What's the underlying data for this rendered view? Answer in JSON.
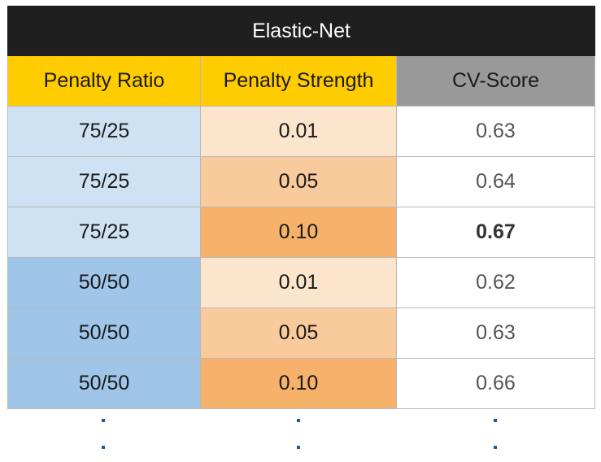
{
  "table": {
    "title": "Elastic-Net",
    "headers": [
      "Penalty Ratio",
      "Penalty Strength",
      "CV-Score"
    ],
    "rows": [
      {
        "ratio": "75/25",
        "strength": "0.01",
        "score": "0.63"
      },
      {
        "ratio": "75/25",
        "strength": "0.05",
        "score": "0.64"
      },
      {
        "ratio": "75/25",
        "strength": "0.10",
        "score": "0.67"
      },
      {
        "ratio": "50/50",
        "strength": "0.01",
        "score": "0.62"
      },
      {
        "ratio": "50/50",
        "strength": "0.05",
        "score": "0.63"
      },
      {
        "ratio": "50/50",
        "strength": "0.10",
        "score": "0.66"
      }
    ]
  },
  "colors": {
    "title_bg": "#1f1f1f",
    "header_yellow": "#ffcc00",
    "header_gray": "#999999",
    "ratio_light_blue": "#cfe2f3",
    "ratio_blue": "#9fc5e8",
    "strength_light": "#fce5cd",
    "strength_mid": "#f9cb9c",
    "strength_dark": "#f6b26b",
    "dots": "#1f5a96"
  }
}
